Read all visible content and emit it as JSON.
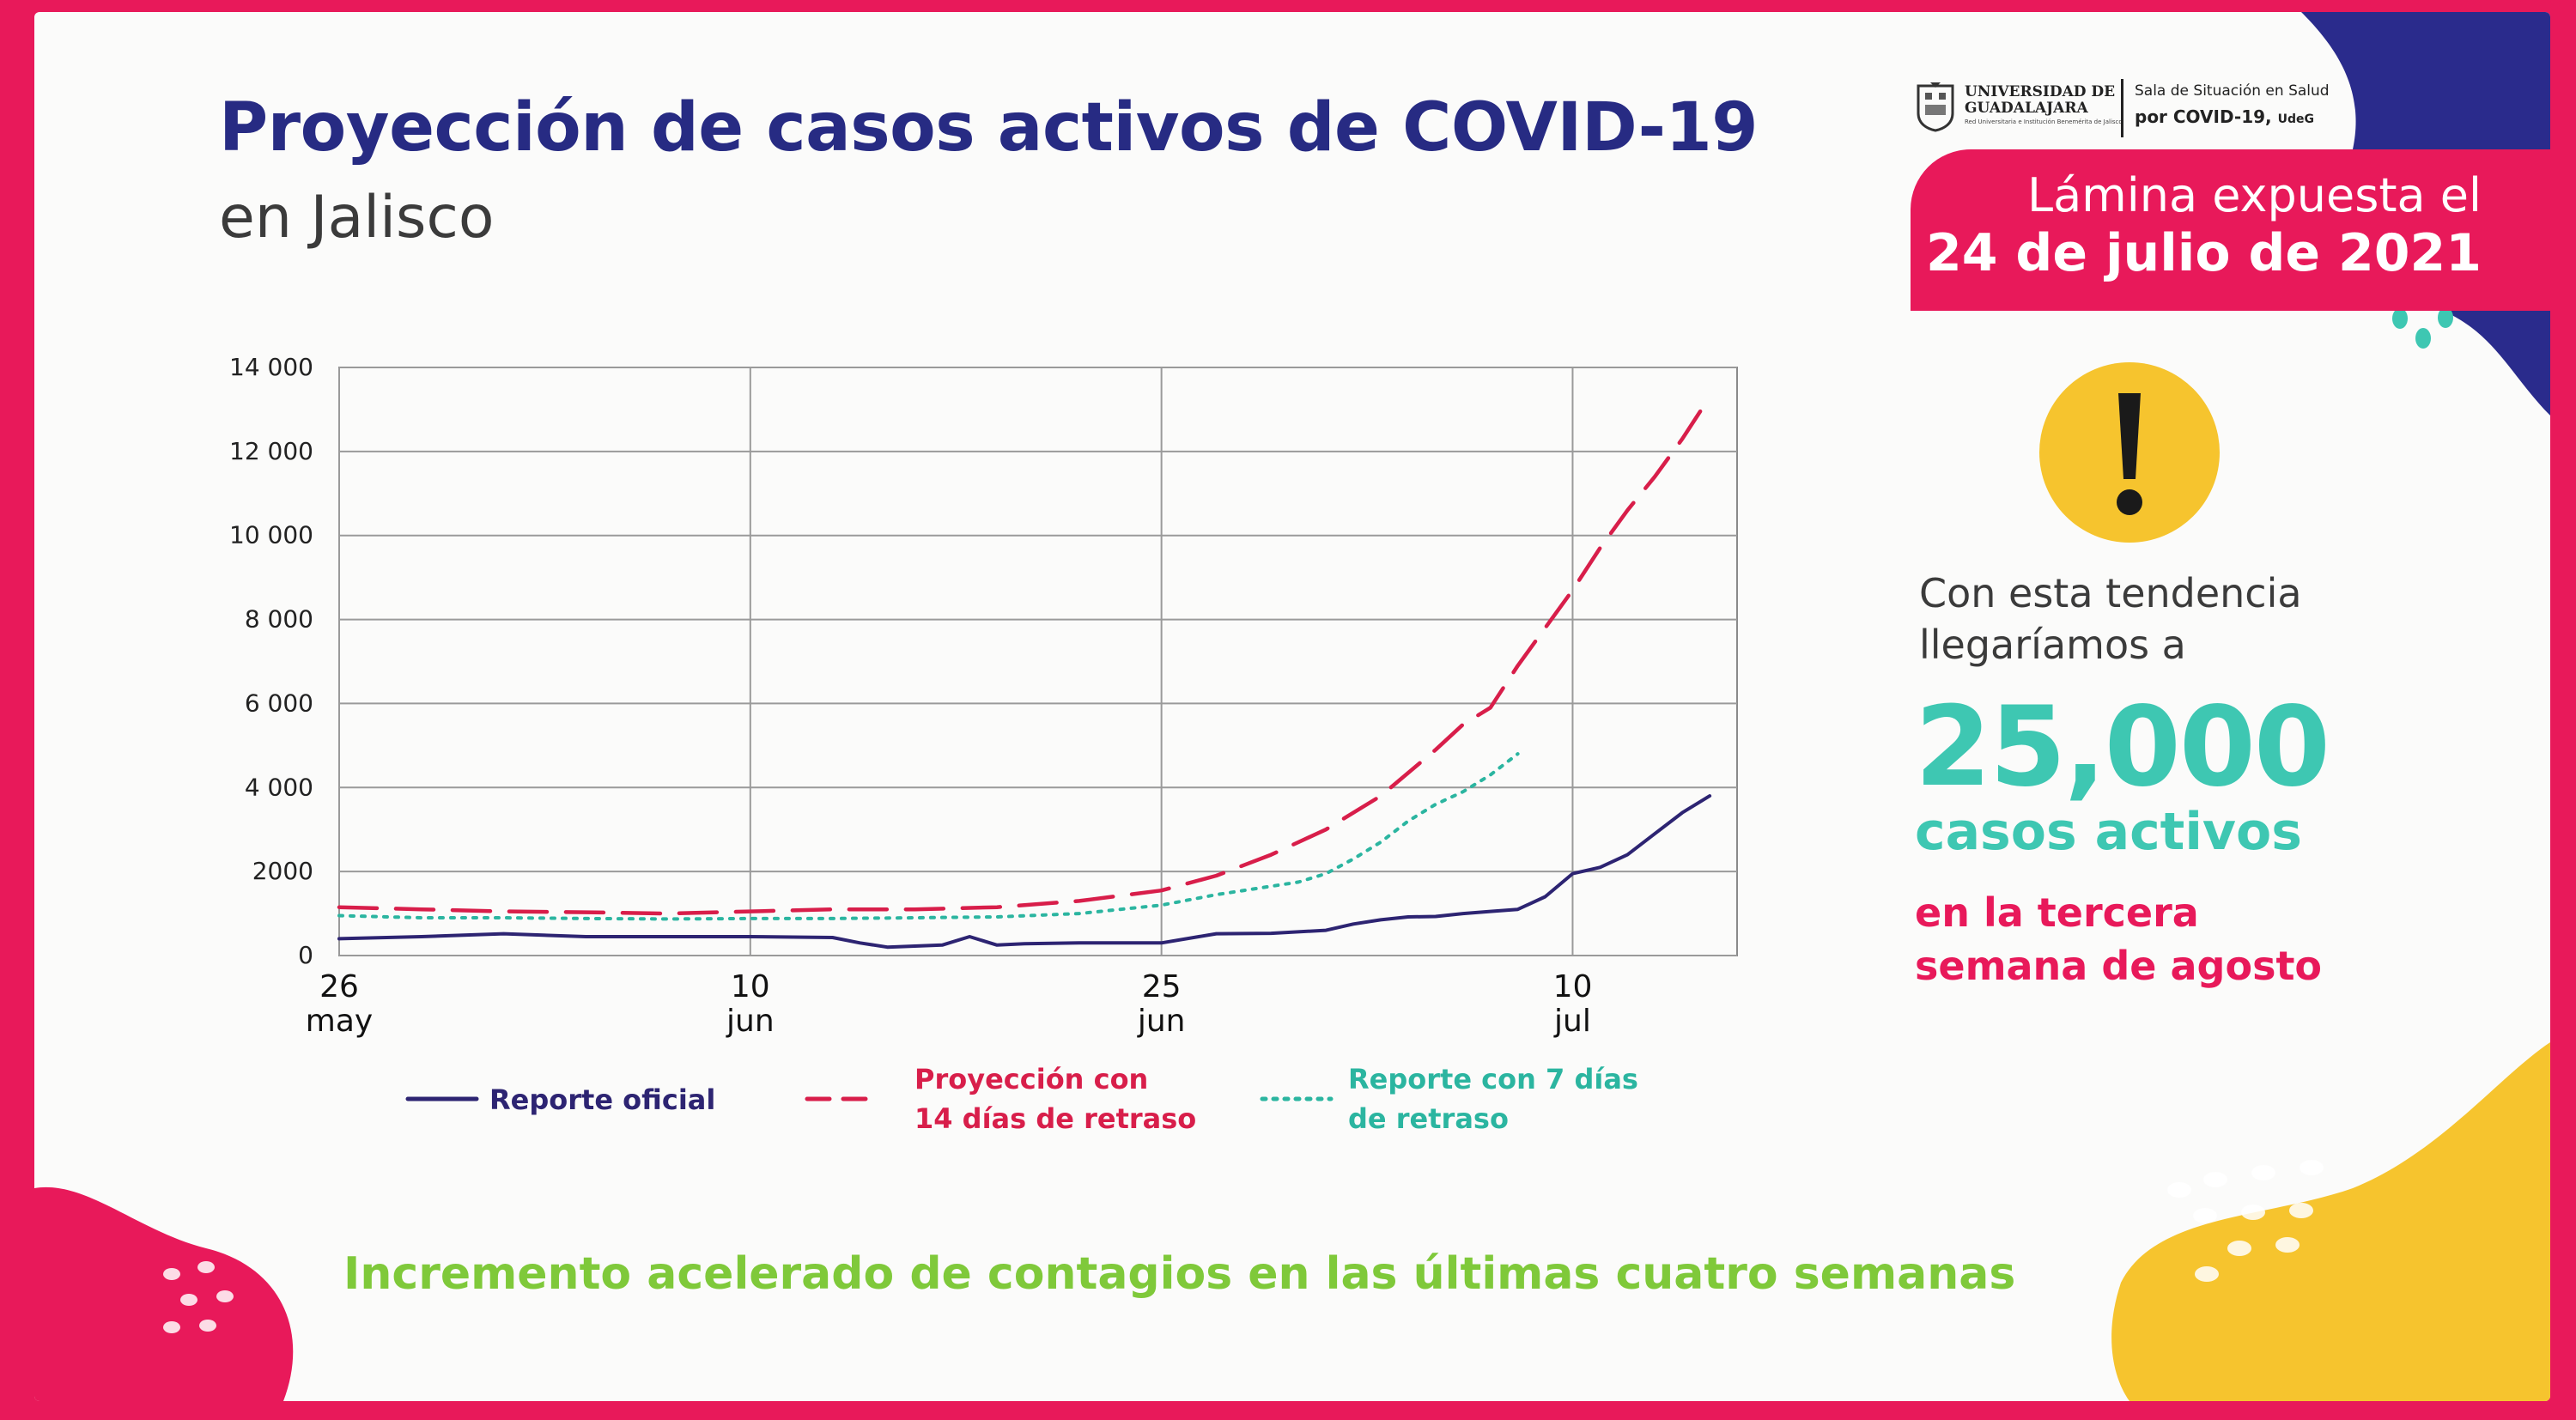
{
  "header": {
    "title": "Proyección de casos activos de COVID-19",
    "subtitle": "en Jalisco"
  },
  "logo": {
    "university_line1": "UNIVERSIDAD DE",
    "university_line2": "GUADALAJARA",
    "university_tagline": "Red Universitaria e Institución Benemérita de Jalisco",
    "sala_line1": "Sala de Situación en Salud",
    "sala_line2": "por COVID-19,",
    "sala_udeg": "UdeG"
  },
  "date_badge": {
    "line1": "Lámina expuesta el",
    "line2": "24 de julio de 2021"
  },
  "side_panel": {
    "line1": "Con esta tendencia",
    "line2": "llegaríamos a",
    "big_number": "25,000",
    "casos": "casos activos",
    "line3": "en la tercera",
    "line4": "semana de agosto"
  },
  "footer": {
    "message": "Incremento acelerado de contagios en las últimas cuatro semanas"
  },
  "colors": {
    "background_frame": "#e8195a",
    "title": "#272b83",
    "official": "#2d2472",
    "projection": "#d81e4a",
    "delayed7": "#2bb5a0",
    "teal_text": "#3ec7b2",
    "green_text": "#7fc93a",
    "yellow": "#f6c42e"
  },
  "chart_data": {
    "type": "line",
    "title": "Proyección de casos activos de COVID-19 en Jalisco",
    "xlabel": "",
    "ylabel": "",
    "x_unit": "days since 26 May 2021",
    "xlim": [
      0,
      51
    ],
    "ylim": [
      0,
      14000
    ],
    "grid": true,
    "y_ticks": [
      {
        "value": 0,
        "label": "0"
      },
      {
        "value": 2000,
        "label": "2000"
      },
      {
        "value": 4000,
        "label": "4 000"
      },
      {
        "value": 6000,
        "label": "6 000"
      },
      {
        "value": 8000,
        "label": "8 000"
      },
      {
        "value": 10000,
        "label": "10 000"
      },
      {
        "value": 12000,
        "label": "12 000"
      },
      {
        "value": 14000,
        "label": "14 000"
      }
    ],
    "x_ticks": [
      {
        "value": 0,
        "day": "26",
        "month": "may"
      },
      {
        "value": 15,
        "day": "10",
        "month": "jun"
      },
      {
        "value": 30,
        "day": "25",
        "month": "jun"
      },
      {
        "value": 45,
        "day": "10",
        "month": "jul"
      }
    ],
    "series": [
      {
        "name": "Reporte oficial",
        "style": "solid",
        "color": "#2d2472",
        "x": [
          0,
          3,
          6,
          9,
          12,
          15,
          18,
          19,
          20,
          22,
          23,
          24,
          25,
          27,
          30,
          32,
          34,
          36,
          37,
          38,
          39,
          40,
          41,
          42,
          43,
          44,
          45,
          46,
          47,
          48,
          49,
          50
        ],
        "y": [
          400,
          450,
          520,
          450,
          450,
          450,
          430,
          300,
          200,
          250,
          450,
          250,
          280,
          300,
          300,
          520,
          530,
          600,
          750,
          850,
          920,
          930,
          1000,
          1050,
          1100,
          1400,
          1950,
          2100,
          2400,
          2900,
          3400,
          3800
        ]
      },
      {
        "name": "Proyección con 14 días de retraso",
        "style": "dashed",
        "color": "#d81e4a",
        "x": [
          0,
          3,
          6,
          9,
          12,
          15,
          18,
          21,
          24,
          27,
          30,
          32,
          34,
          36,
          38,
          40,
          41,
          42,
          43,
          44,
          45,
          46,
          47,
          48,
          49,
          50
        ],
        "y": [
          1150,
          1100,
          1050,
          1030,
          1000,
          1050,
          1100,
          1100,
          1150,
          1300,
          1550,
          1900,
          2400,
          3000,
          3800,
          4900,
          5500,
          5900,
          6900,
          7800,
          8700,
          9700,
          10600,
          11400,
          12300,
          13300
        ]
      },
      {
        "name": "Reporte con 7 días de retraso",
        "style": "dotted",
        "color": "#2bb5a0",
        "x": [
          0,
          3,
          6,
          9,
          12,
          15,
          18,
          21,
          24,
          27,
          30,
          32,
          34,
          35,
          36,
          37,
          38,
          39,
          40,
          41,
          42,
          43
        ],
        "y": [
          950,
          900,
          900,
          880,
          870,
          880,
          880,
          900,
          920,
          1000,
          1200,
          1450,
          1650,
          1750,
          1950,
          2300,
          2700,
          3200,
          3600,
          3900,
          4300,
          4800
        ]
      }
    ]
  }
}
